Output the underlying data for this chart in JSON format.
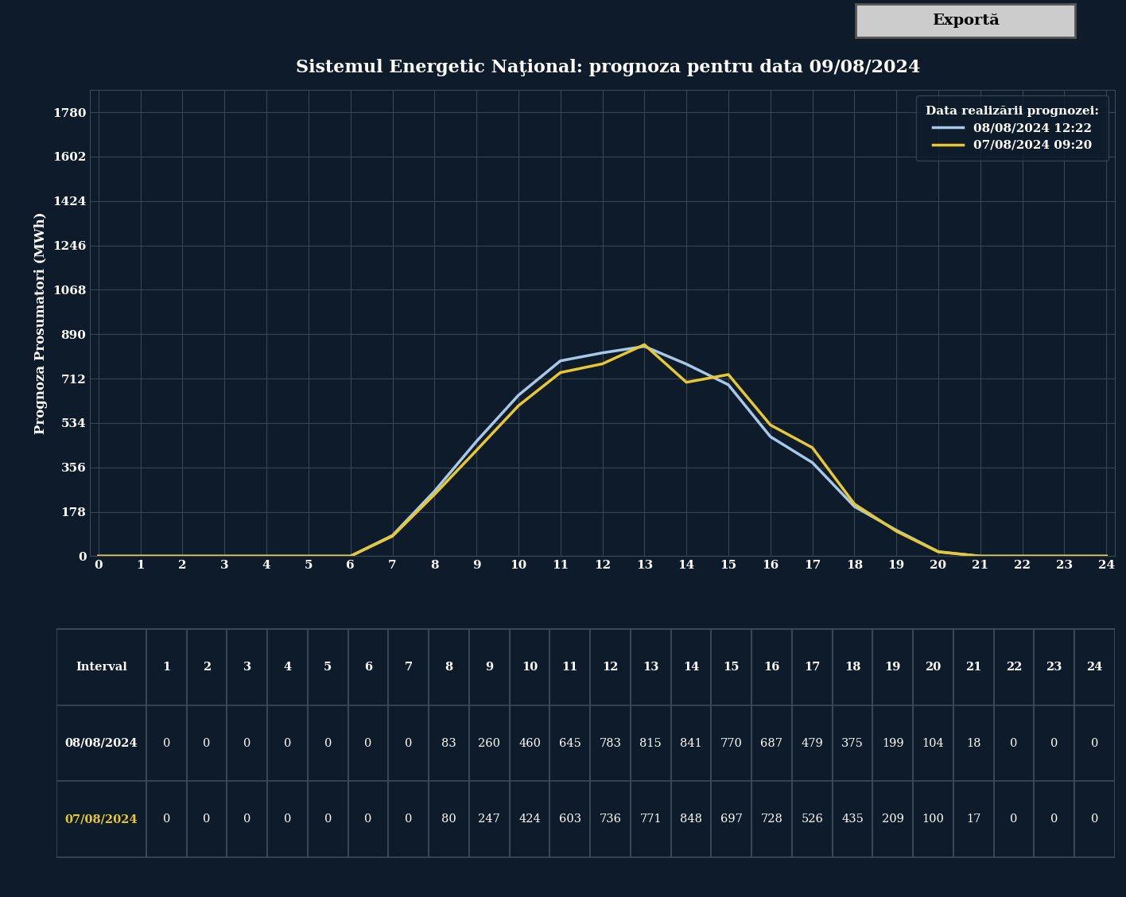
{
  "title": "Sistemul Energetic Naţional: prognoza pentru data 09/08/2024",
  "ylabel": "Prognoza Prosumatori (MWh)",
  "xlabel_values": [
    0,
    1,
    2,
    3,
    4,
    5,
    6,
    7,
    8,
    9,
    10,
    11,
    12,
    13,
    14,
    15,
    16,
    17,
    18,
    19,
    20,
    21,
    22,
    23,
    24
  ],
  "yticks": [
    0,
    178,
    356,
    534,
    712,
    890,
    1068,
    1246,
    1424,
    1602,
    1780
  ],
  "ylim_max": 1870,
  "xlim": [
    -0.2,
    24.2
  ],
  "legend_title": "Data realizării prognozei:",
  "series1_label": "08/08/2024 12:22",
  "series2_label": "07/08/2024 09:20",
  "series1_color": "#a8c8e8",
  "series2_color": "#e8c830",
  "series1_x": [
    0,
    1,
    2,
    3,
    4,
    5,
    6,
    7,
    8,
    9,
    10,
    11,
    12,
    13,
    14,
    15,
    16,
    17,
    18,
    19,
    20,
    21,
    22,
    23,
    24
  ],
  "series1_y": [
    0,
    0,
    0,
    0,
    0,
    0,
    0,
    83,
    260,
    460,
    645,
    783,
    815,
    841,
    770,
    687,
    479,
    375,
    199,
    104,
    18,
    0,
    0,
    0,
    0
  ],
  "series2_x": [
    0,
    1,
    2,
    3,
    4,
    5,
    6,
    7,
    8,
    9,
    10,
    11,
    12,
    13,
    14,
    15,
    16,
    17,
    18,
    19,
    20,
    21,
    22,
    23,
    24
  ],
  "series2_y": [
    0,
    0,
    0,
    0,
    0,
    0,
    0,
    80,
    247,
    424,
    603,
    736,
    771,
    848,
    697,
    728,
    526,
    435,
    209,
    100,
    17,
    0,
    0,
    0,
    0
  ],
  "background_color": "#0d1b2a",
  "plot_bg_color": "#0d1b2a",
  "grid_color": "#3a4a5a",
  "text_color": "#ffffff",
  "table_header": [
    "Interval",
    "1",
    "2",
    "3",
    "4",
    "5",
    "6",
    "7",
    "8",
    "9",
    "10",
    "11",
    "12",
    "13",
    "14",
    "15",
    "16",
    "17",
    "18",
    "19",
    "20",
    "21",
    "22",
    "23",
    "24"
  ],
  "table_row1_label": "08/08/2024",
  "table_row1_color": "#ffffff",
  "table_row2_label": "07/08/2024",
  "table_row2_color": "#e8c830",
  "table_row1": [
    0,
    0,
    0,
    0,
    0,
    0,
    0,
    83,
    260,
    460,
    645,
    783,
    815,
    841,
    770,
    687,
    479,
    375,
    199,
    104,
    18,
    0,
    0,
    0
  ],
  "table_row2": [
    0,
    0,
    0,
    0,
    0,
    0,
    0,
    80,
    247,
    424,
    603,
    736,
    771,
    848,
    697,
    728,
    526,
    435,
    209,
    100,
    17,
    0,
    0,
    0
  ],
  "export_button_label": "Exportă"
}
